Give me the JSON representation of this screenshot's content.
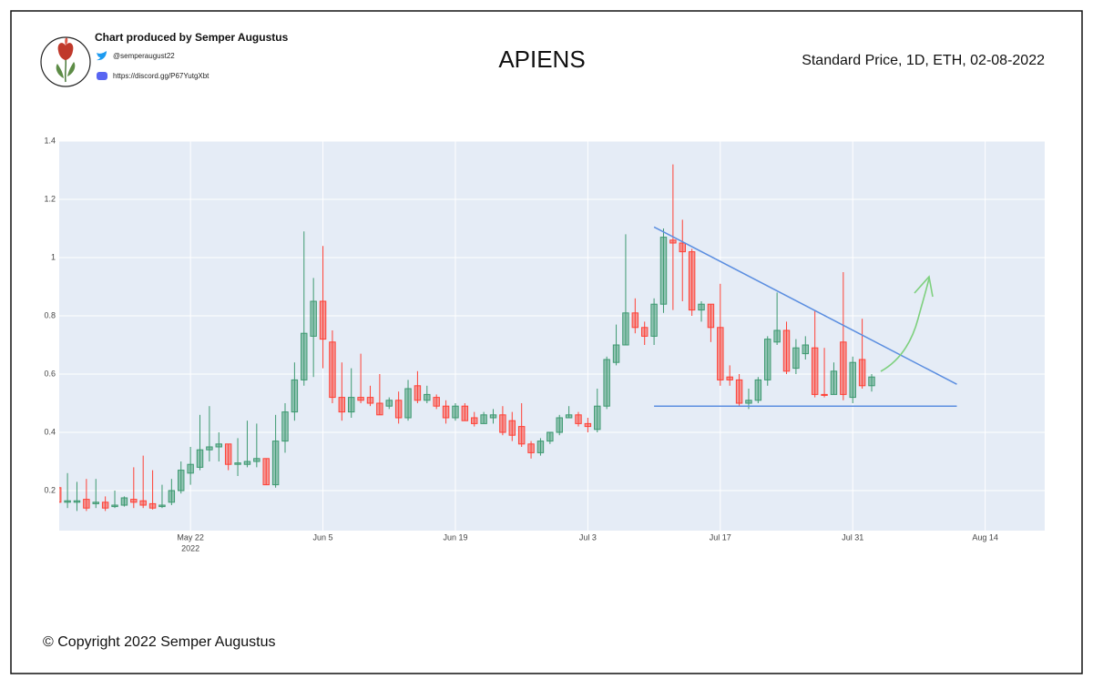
{
  "header": {
    "credit": "Chart produced by Semper Augustus",
    "twitter": "@semperaugust22",
    "discord": "https://discord.gg/P67YutgXbt"
  },
  "footer": "© Copyright 2022 Semper Augustus",
  "chart_data": {
    "type": "candlestick",
    "title": "APIENS",
    "subtitle": "Standard Price, 1D, ETH, 02-08-2022",
    "x": [
      "2022-05-08",
      "2022-05-09",
      "2022-05-10",
      "2022-05-11",
      "2022-05-12",
      "2022-05-13",
      "2022-05-14",
      "2022-05-15",
      "2022-05-16",
      "2022-05-17",
      "2022-05-18",
      "2022-05-19",
      "2022-05-20",
      "2022-05-21",
      "2022-05-22",
      "2022-05-23",
      "2022-05-24",
      "2022-05-25",
      "2022-05-26",
      "2022-05-27",
      "2022-05-28",
      "2022-05-29",
      "2022-05-30",
      "2022-05-31",
      "2022-06-01",
      "2022-06-02",
      "2022-06-03",
      "2022-06-04",
      "2022-06-05",
      "2022-06-06",
      "2022-06-07",
      "2022-06-08",
      "2022-06-09",
      "2022-06-10",
      "2022-06-11",
      "2022-06-12",
      "2022-06-13",
      "2022-06-14",
      "2022-06-15",
      "2022-06-16",
      "2022-06-17",
      "2022-06-18",
      "2022-06-19",
      "2022-06-20",
      "2022-06-21",
      "2022-06-22",
      "2022-06-23",
      "2022-06-24",
      "2022-06-25",
      "2022-06-26",
      "2022-06-27",
      "2022-06-28",
      "2022-06-29",
      "2022-06-30",
      "2022-07-01",
      "2022-07-02",
      "2022-07-03",
      "2022-07-04",
      "2022-07-05",
      "2022-07-06",
      "2022-07-07",
      "2022-07-08",
      "2022-07-09",
      "2022-07-10",
      "2022-07-11",
      "2022-07-12",
      "2022-07-13",
      "2022-07-14",
      "2022-07-15",
      "2022-07-16",
      "2022-07-17",
      "2022-07-18",
      "2022-07-19",
      "2022-07-20",
      "2022-07-21",
      "2022-07-22",
      "2022-07-23",
      "2022-07-24",
      "2022-07-25",
      "2022-07-26",
      "2022-07-27",
      "2022-07-28",
      "2022-07-29",
      "2022-07-30",
      "2022-07-31",
      "2022-08-01",
      "2022-08-02"
    ],
    "open": [
      0.21,
      0.16,
      0.16,
      0.17,
      0.155,
      0.16,
      0.145,
      0.15,
      0.17,
      0.165,
      0.155,
      0.145,
      0.16,
      0.2,
      0.26,
      0.28,
      0.34,
      0.35,
      0.36,
      0.29,
      0.29,
      0.3,
      0.31,
      0.22,
      0.37,
      0.47,
      0.58,
      0.73,
      0.85,
      0.71,
      0.52,
      0.47,
      0.52,
      0.52,
      0.5,
      0.49,
      0.51,
      0.45,
      0.56,
      0.51,
      0.52,
      0.49,
      0.45,
      0.49,
      0.45,
      0.43,
      0.45,
      0.46,
      0.44,
      0.42,
      0.36,
      0.33,
      0.37,
      0.4,
      0.45,
      0.46,
      0.43,
      0.41,
      0.49,
      0.64,
      0.7,
      0.81,
      0.76,
      0.73,
      0.84,
      1.06,
      1.05,
      1.02,
      0.82,
      0.84,
      0.76,
      0.59,
      0.58,
      0.5,
      0.51,
      0.58,
      0.71,
      0.75,
      0.62,
      0.67,
      0.69,
      0.53,
      0.53,
      0.71,
      0.52,
      0.65,
      0.56
    ],
    "high": [
      0.22,
      0.26,
      0.23,
      0.24,
      0.24,
      0.18,
      0.2,
      0.18,
      0.28,
      0.32,
      0.27,
      0.22,
      0.24,
      0.3,
      0.35,
      0.46,
      0.49,
      0.4,
      0.36,
      0.38,
      0.44,
      0.43,
      0.31,
      0.46,
      0.5,
      0.64,
      1.09,
      0.93,
      1.04,
      0.75,
      0.64,
      0.62,
      0.67,
      0.56,
      0.6,
      0.52,
      0.54,
      0.58,
      0.61,
      0.56,
      0.53,
      0.51,
      0.5,
      0.5,
      0.47,
      0.47,
      0.48,
      0.49,
      0.47,
      0.5,
      0.37,
      0.38,
      0.4,
      0.46,
      0.49,
      0.47,
      0.45,
      0.55,
      0.66,
      0.77,
      1.08,
      0.86,
      0.78,
      0.86,
      1.1,
      1.32,
      1.13,
      1.03,
      0.85,
      0.84,
      0.91,
      0.63,
      0.6,
      0.55,
      0.59,
      0.73,
      0.88,
      0.78,
      0.72,
      0.73,
      0.82,
      0.69,
      0.64,
      0.95,
      0.66,
      0.79,
      0.6
    ],
    "low": [
      0.16,
      0.14,
      0.13,
      0.13,
      0.14,
      0.13,
      0.14,
      0.145,
      0.14,
      0.14,
      0.135,
      0.14,
      0.15,
      0.19,
      0.22,
      0.27,
      0.3,
      0.3,
      0.27,
      0.25,
      0.28,
      0.28,
      0.22,
      0.21,
      0.33,
      0.44,
      0.56,
      0.59,
      0.62,
      0.5,
      0.44,
      0.45,
      0.5,
      0.49,
      0.46,
      0.48,
      0.43,
      0.44,
      0.5,
      0.5,
      0.48,
      0.43,
      0.44,
      0.44,
      0.42,
      0.43,
      0.43,
      0.39,
      0.37,
      0.35,
      0.31,
      0.32,
      0.36,
      0.39,
      0.45,
      0.42,
      0.4,
      0.4,
      0.48,
      0.63,
      0.7,
      0.74,
      0.7,
      0.7,
      0.81,
      0.82,
      0.85,
      0.8,
      0.78,
      0.71,
      0.56,
      0.56,
      0.49,
      0.48,
      0.5,
      0.56,
      0.7,
      0.6,
      0.6,
      0.65,
      0.52,
      0.52,
      0.53,
      0.51,
      0.5,
      0.55,
      0.54
    ],
    "close": [
      0.16,
      0.165,
      0.165,
      0.14,
      0.16,
      0.14,
      0.15,
      0.175,
      0.16,
      0.15,
      0.14,
      0.15,
      0.2,
      0.27,
      0.29,
      0.34,
      0.35,
      0.36,
      0.29,
      0.295,
      0.3,
      0.31,
      0.22,
      0.37,
      0.47,
      0.58,
      0.74,
      0.85,
      0.72,
      0.52,
      0.47,
      0.52,
      0.51,
      0.5,
      0.46,
      0.51,
      0.45,
      0.55,
      0.51,
      0.53,
      0.49,
      0.45,
      0.49,
      0.44,
      0.43,
      0.46,
      0.46,
      0.4,
      0.39,
      0.36,
      0.33,
      0.37,
      0.4,
      0.45,
      0.46,
      0.43,
      0.42,
      0.49,
      0.65,
      0.7,
      0.81,
      0.76,
      0.73,
      0.84,
      1.07,
      1.05,
      1.02,
      0.82,
      0.84,
      0.76,
      0.58,
      0.58,
      0.5,
      0.51,
      0.58,
      0.72,
      0.75,
      0.61,
      0.69,
      0.7,
      0.53,
      0.53,
      0.61,
      0.53,
      0.64,
      0.56,
      0.59
    ],
    "increasing_color": "#3d9970",
    "decreasing_color": "#ff4136",
    "xlim": [
      "2022-05-08T03:00",
      "2022-08-20T07:00"
    ],
    "ylim": [
      0.0625,
      1.4
    ],
    "xticks": [
      {
        "value": "2022-05-22",
        "label": "May 22"
      },
      {
        "value": "2022-06-05",
        "label": "Jun 5"
      },
      {
        "value": "2022-06-19",
        "label": "Jun 19"
      },
      {
        "value": "2022-07-03",
        "label": "Jul 3"
      },
      {
        "value": "2022-07-17",
        "label": "Jul 17"
      },
      {
        "value": "2022-07-31",
        "label": "Jul 31"
      },
      {
        "value": "2022-08-14",
        "label": "Aug 14"
      }
    ],
    "xtick_year": "2022",
    "yticks": [
      0.2,
      0.4,
      0.6,
      0.8,
      1,
      1.2,
      1.4
    ],
    "grid": true,
    "trendlines": [
      {
        "x": [
          "2022-07-10",
          "2022-08-11"
        ],
        "y": [
          1.105,
          0.565
        ],
        "color": "#5b8ee0"
      },
      {
        "x": [
          "2022-07-10",
          "2022-08-11"
        ],
        "y": [
          0.49,
          0.49
        ],
        "color": "#5b8ee0"
      }
    ]
  }
}
